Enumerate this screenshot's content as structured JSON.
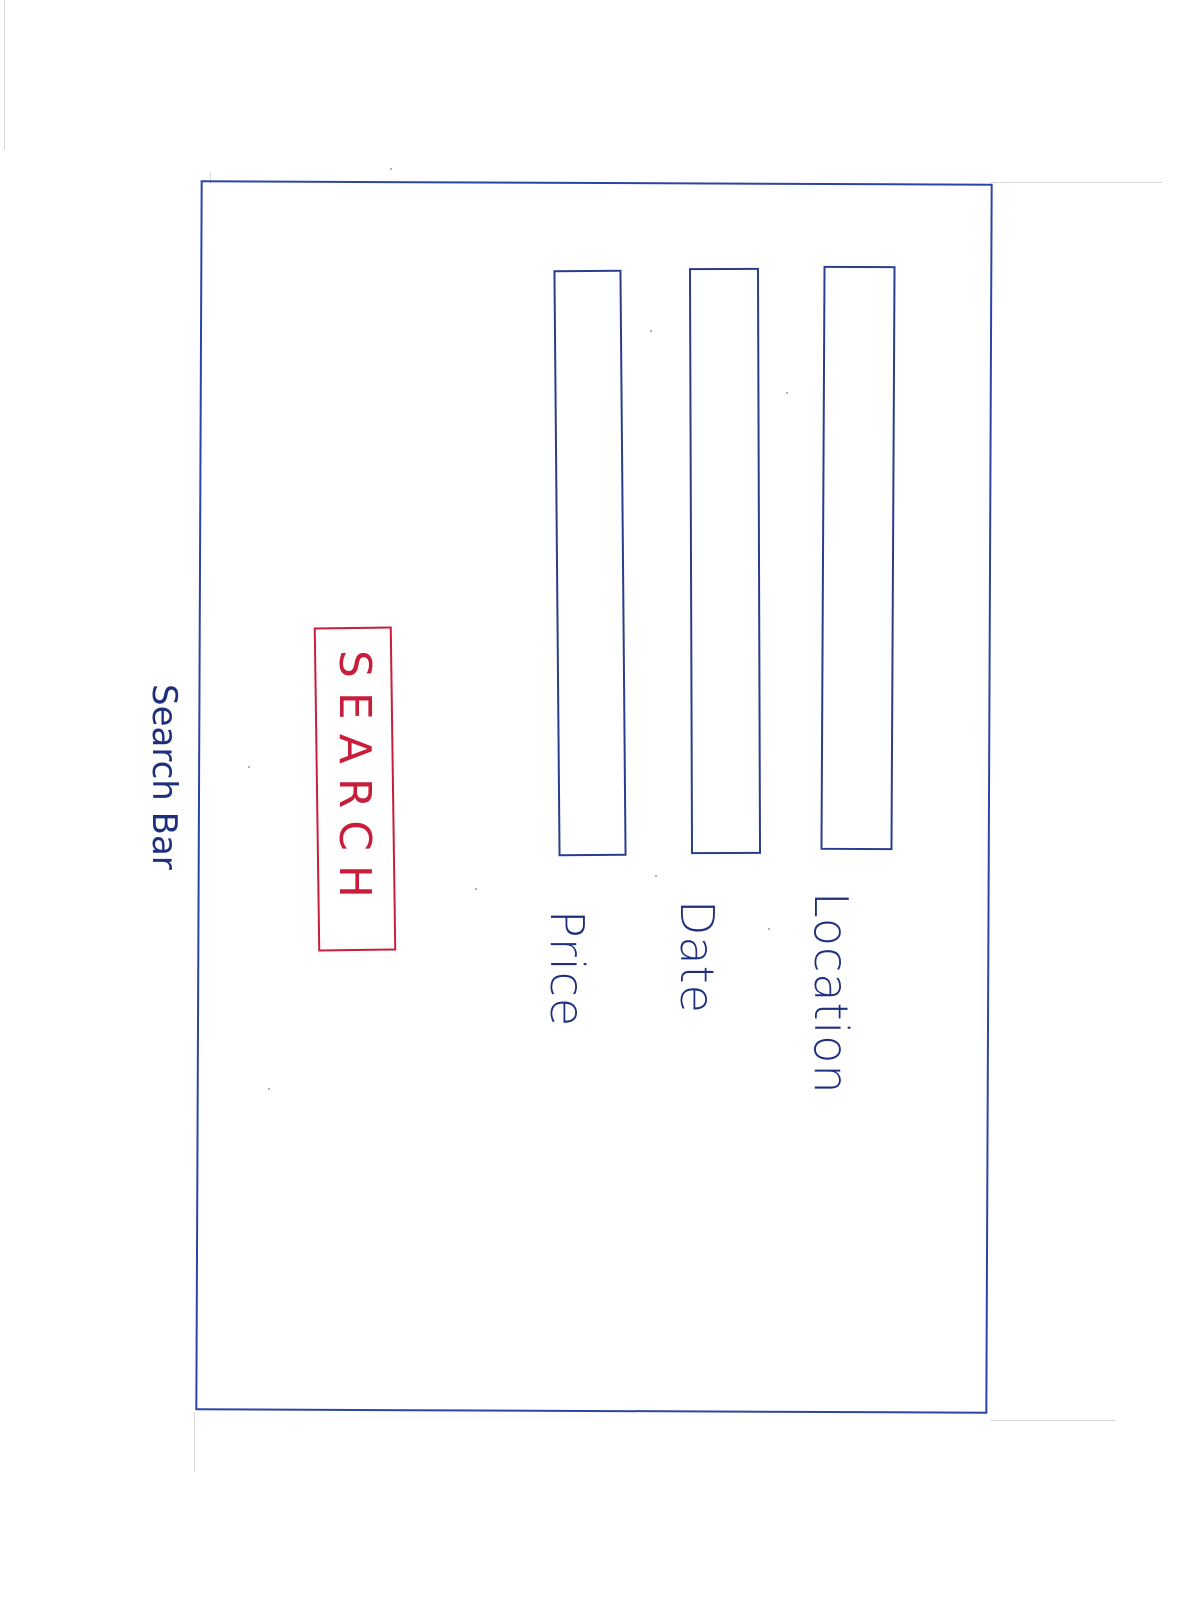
{
  "frame": {
    "label": "Search Bar"
  },
  "fields": [
    {
      "label": "Location"
    },
    {
      "label": "Date"
    },
    {
      "label": "Price"
    }
  ],
  "search_button": {
    "label": "SEARCH"
  },
  "colors": {
    "ink_blue": "#2c44a6",
    "ink_red": "#c81e3c",
    "paper": "#ffffff"
  }
}
